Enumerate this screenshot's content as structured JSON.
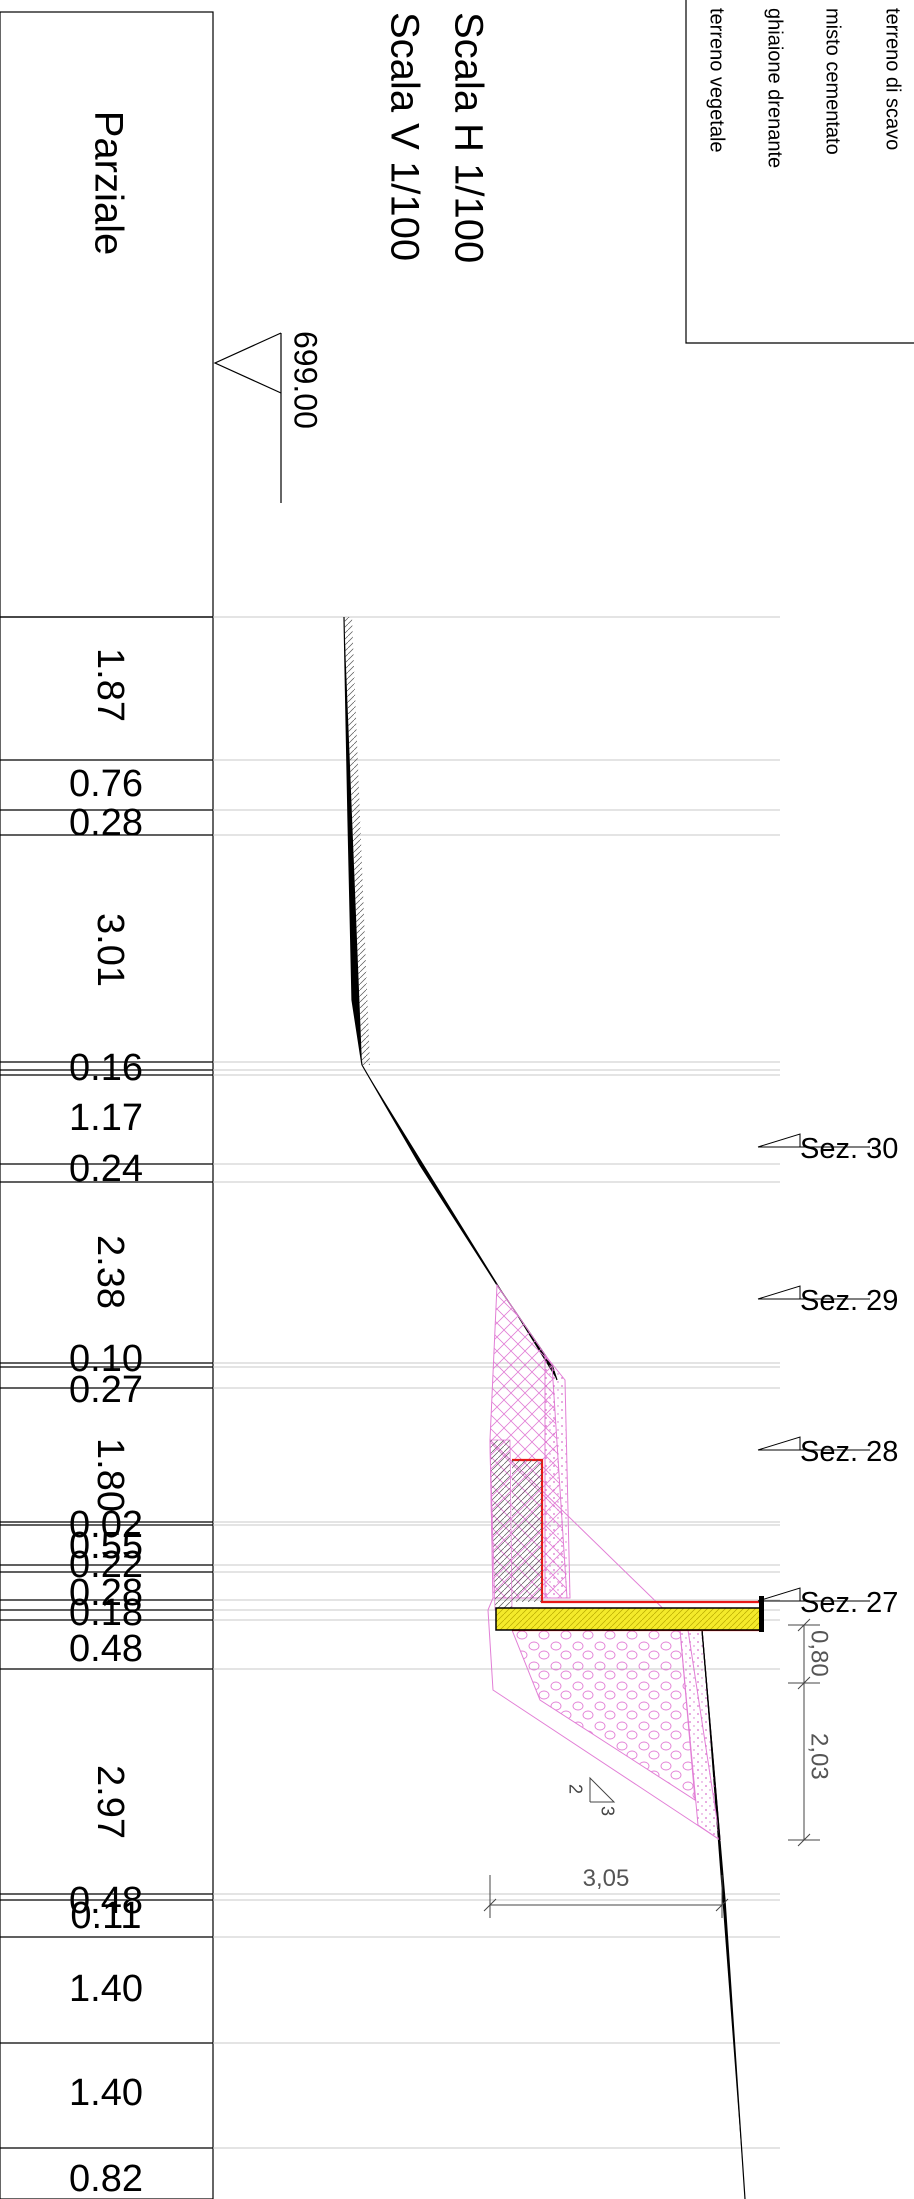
{
  "header": {
    "column_title": "Parziale",
    "scale_h": "Scala H  1/100",
    "scale_v": "Scala V  1/100",
    "datum_elevation": "699.00"
  },
  "legend": {
    "items": [
      "terreno di scavo",
      "misto cementato",
      "ghiaione drenante",
      "terreno vegetale"
    ]
  },
  "partials": [
    "1.87",
    "0.76",
    "0.28",
    "3.01",
    "0.16",
    "1.17",
    "0.24",
    "2.38",
    "0.10",
    "0.27",
    "1.80",
    "0.02",
    "0.55",
    "0.22",
    "0.28",
    "0.18",
    "0.48",
    "2.97",
    "0.48",
    "0.11",
    "1.40",
    "1.40",
    "0.82"
  ],
  "sections": [
    "Sez. 30",
    "Sez. 29",
    "Sez. 28",
    "Sez. 27"
  ],
  "dimensions": {
    "width": "3,05",
    "height_top": "0,80",
    "height_bottom": "2,03",
    "slope_run": "2",
    "slope_rise": "3"
  },
  "colors": {
    "hatch_pink": "#e27fd6",
    "retaining_wall_red": "#e81818",
    "base_slab_yellow": "#f4ea2a",
    "line_black": "#000000",
    "grid_grey": "#c8c8c8"
  }
}
